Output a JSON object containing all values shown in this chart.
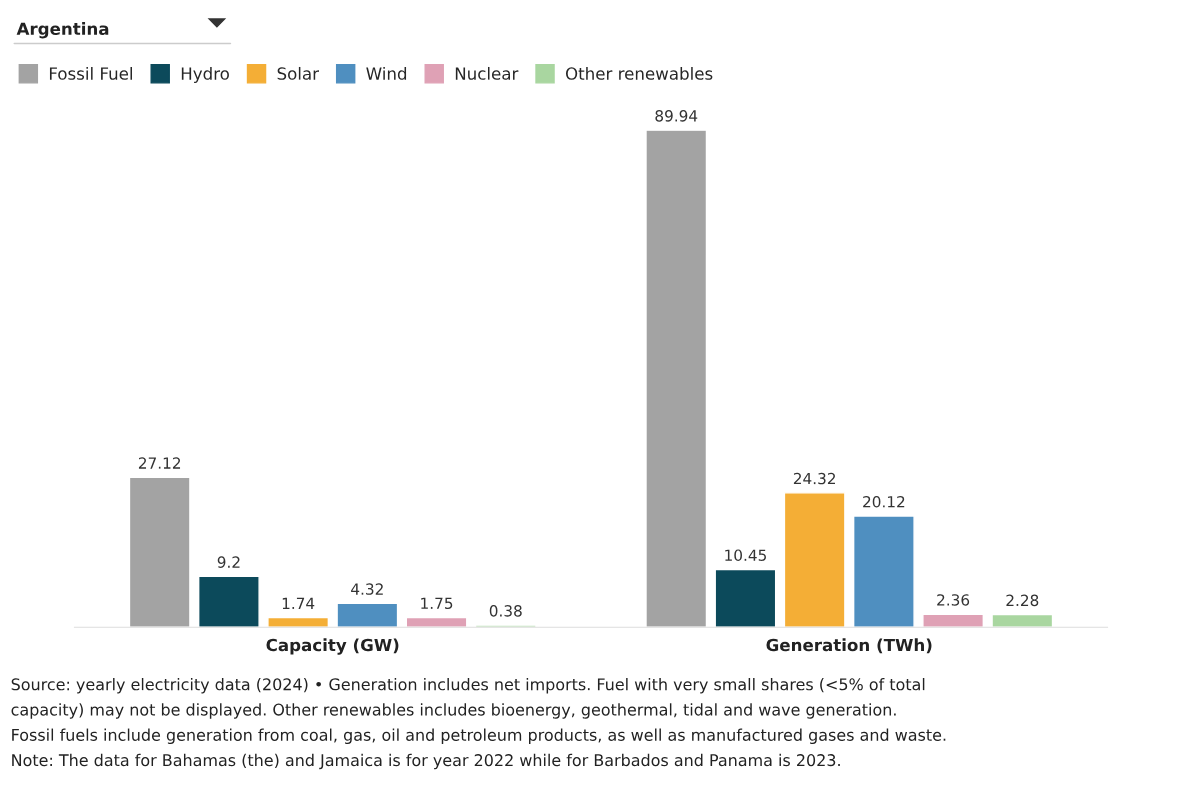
{
  "chart_data": {
    "type": "bar",
    "title": "Argentina",
    "categories": [
      "Capacity (GW)",
      "Generation (TWh)"
    ],
    "series": [
      {
        "name": "Fossil Fuel",
        "color": "#a3a3a3",
        "values": [
          27.12,
          89.94
        ]
      },
      {
        "name": "Hydro",
        "color": "#0c4a5b",
        "values": [
          9.2,
          10.45
        ]
      },
      {
        "name": "Solar",
        "color": "#f4ae36",
        "values": [
          1.74,
          24.32
        ]
      },
      {
        "name": "Wind",
        "color": "#4f8fc0",
        "values": [
          4.32,
          20.12
        ]
      },
      {
        "name": "Nuclear",
        "color": "#dfa1b5",
        "values": [
          1.75,
          2.36
        ]
      },
      {
        "name": "Other renewables",
        "color": "#a9d6a0",
        "values": [
          0.38,
          2.28
        ]
      }
    ],
    "data_labels": true,
    "legend": "top left",
    "grid": false,
    "annotations": [
      "Source: yearly electricity data (2024) • Generation includes net imports. Fuel with very small shares (<5% of total",
      "capacity) may not be displayed. Other renewables includes bioenergy, geothermal, tidal and wave generation.",
      "Fossil fuels include generation from coal, gas, oil and petroleum products, as well as manufactured gases and waste.",
      "Note: The data for Bahamas (the) and Jamaica is for year 2022 while for Barbados and Panama is 2023."
    ]
  }
}
